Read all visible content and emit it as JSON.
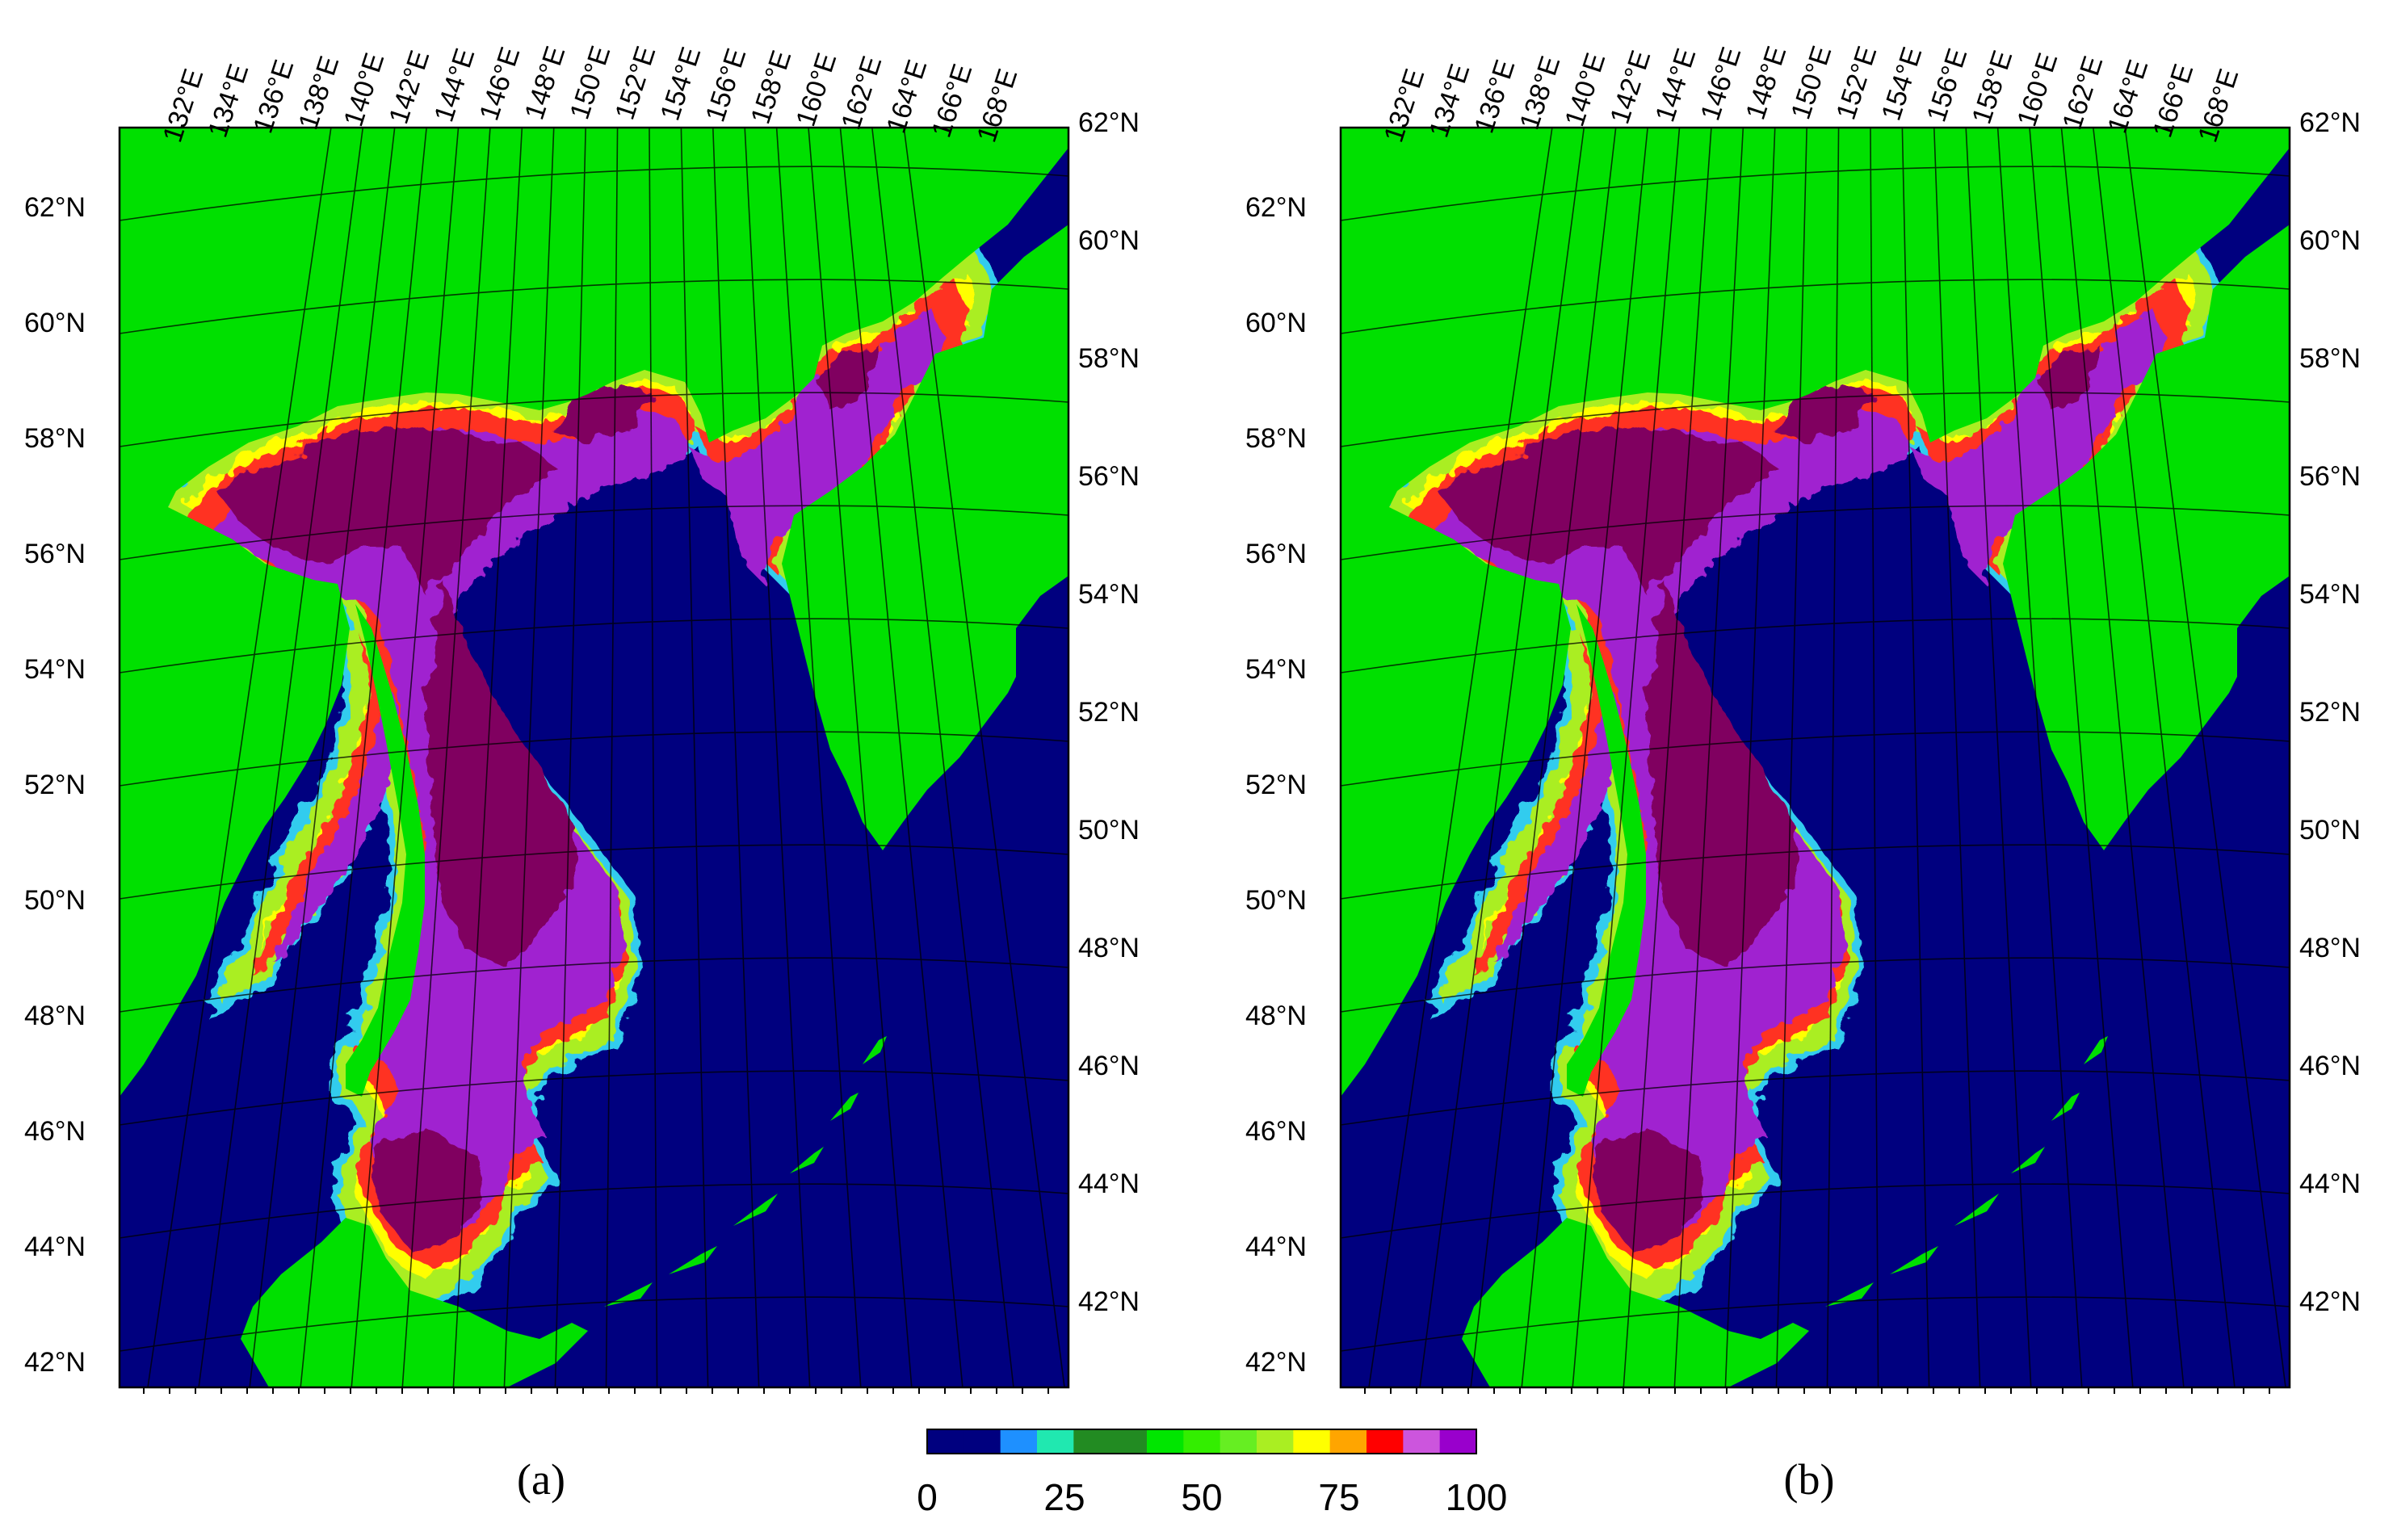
{
  "panels": [
    {
      "label": "(a)",
      "lon_labels": [
        "132°E",
        "134°E",
        "136°E",
        "138°E",
        "140°E",
        "142°E",
        "144°E",
        "146°E",
        "148°E",
        "150°E",
        "152°E",
        "154°E",
        "156°E",
        "158°E",
        "160°E",
        "162°E",
        "164°E",
        "166°E",
        "168°E"
      ],
      "lat_labels_left": [
        "62°N",
        "60°N",
        "58°N",
        "56°N",
        "54°N",
        "52°N",
        "50°N",
        "48°N",
        "46°N",
        "44°N",
        "42°N"
      ],
      "lat_labels_right": [
        "62°N",
        "60°N",
        "58°N",
        "56°N",
        "54°N",
        "52°N",
        "50°N",
        "48°N",
        "46°N",
        "44°N",
        "42°N"
      ]
    },
    {
      "label": "(b)",
      "lon_labels": [
        "132°E",
        "134°E",
        "136°E",
        "138°E",
        "140°E",
        "142°E",
        "144°E",
        "146°E",
        "148°E",
        "150°E",
        "152°E",
        "154°E",
        "156°E",
        "158°E",
        "160°E",
        "162°E",
        "164°E",
        "166°E",
        "168°E"
      ],
      "lat_labels_left": [
        "62°N",
        "60°N",
        "58°N",
        "56°N",
        "54°N",
        "52°N",
        "50°N",
        "48°N",
        "46°N",
        "44°N",
        "42°N"
      ],
      "lat_labels_right": [
        "62°N",
        "60°N",
        "58°N",
        "56°N",
        "54°N",
        "52°N",
        "50°N",
        "48°N",
        "46°N",
        "44°N",
        "42°N"
      ]
    }
  ],
  "colorbar": {
    "min": 0,
    "max": 100,
    "ticks": [
      "0",
      "25",
      "50",
      "75",
      "100"
    ],
    "colors": [
      "#00007f",
      "#00007f",
      "#1e90ff",
      "#20e8b0",
      "#228b22",
      "#228b22",
      "#00e600",
      "#33ee00",
      "#66ee22",
      "#aaee22",
      "#ffff00",
      "#ffa500",
      "#ff0000",
      "#cc55dd",
      "#9900cc"
    ]
  },
  "colors": {
    "land": "#00e000",
    "sea": "#00007f",
    "ice_high": "#800060",
    "ice_mid": "#a020d0",
    "ice_edge": "#ffff00",
    "grid": "#000000"
  }
}
